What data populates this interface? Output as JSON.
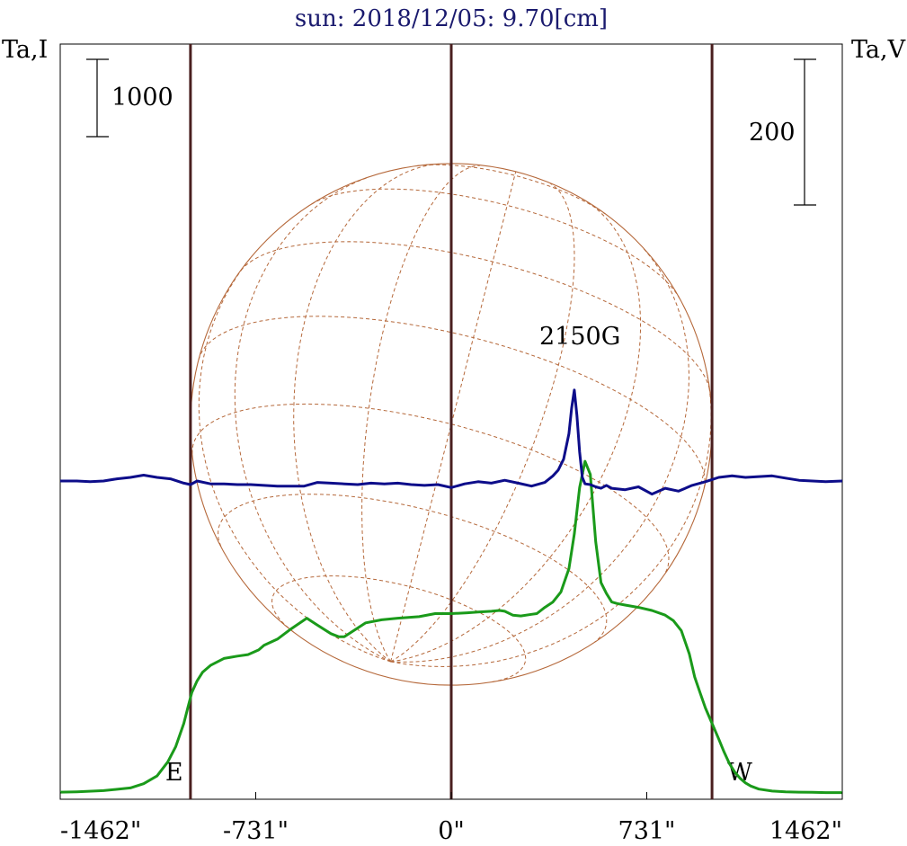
{
  "chart_data": {
    "type": "line",
    "title": "sun: 2018/12/05: 9.70[cm]",
    "left_axis_label": "Ta,I",
    "right_axis_label": "Ta,V",
    "scale_bar_left_label": "1000",
    "scale_bar_right_label": "200",
    "x_ticks": [
      {
        "value": -1462,
        "label": "-1462\""
      },
      {
        "value": -731,
        "label": "-731\""
      },
      {
        "value": 0,
        "label": "0\""
      },
      {
        "value": 731,
        "label": "731\""
      },
      {
        "value": 1462,
        "label": "1462\""
      }
    ],
    "xlim": [
      -1462,
      1462
    ],
    "limb_markers": [
      {
        "value": -975,
        "label": "E"
      },
      {
        "value": 0,
        "label": ""
      },
      {
        "value": 975,
        "label": "W"
      }
    ],
    "annotation": "2150G",
    "solar_radius_arcsec": 975,
    "colors": {
      "intensity": "#1a9a1a",
      "polarization": "#0d0d8a",
      "grid": "#b5683a",
      "marker": "#4a1f1f",
      "title": "#1a1a6e"
    },
    "series": [
      {
        "unit_axis": "left (Ta,I)",
        "x": [
          -1462,
          -1400,
          -1300,
          -1200,
          -1150,
          -1100,
          -1060,
          -1030,
          -1000,
          -985,
          -970,
          -950,
          -930,
          -900,
          -850,
          -800,
          -760,
          -720,
          -700,
          -650,
          -600,
          -540,
          -500,
          -450,
          -420,
          -400,
          -360,
          -320,
          -260,
          -200,
          -160,
          -120,
          -60,
          0,
          60,
          100,
          150,
          180,
          200,
          230,
          260,
          300,
          320,
          350,
          380,
          410,
          440,
          460,
          480,
          500,
          520,
          540,
          560,
          580,
          600,
          620,
          650,
          700,
          750,
          800,
          830,
          860,
          890,
          910,
          930,
          950,
          975,
          1000,
          1020,
          1040,
          1060,
          1080,
          1100,
          1120,
          1150,
          1200,
          1250,
          1300,
          1350,
          1400,
          1462
        ],
        "values": [
          10,
          15,
          30,
          65,
          120,
          220,
          400,
          600,
          900,
          1100,
          1300,
          1450,
          1560,
          1650,
          1740,
          1770,
          1790,
          1850,
          1910,
          1990,
          2120,
          2260,
          2170,
          2060,
          2020,
          2020,
          2110,
          2200,
          2240,
          2260,
          2270,
          2280,
          2320,
          2320,
          2330,
          2340,
          2350,
          2360,
          2350,
          2300,
          2290,
          2310,
          2320,
          2400,
          2470,
          2600,
          2900,
          3350,
          3950,
          4290,
          4120,
          3250,
          2720,
          2580,
          2470,
          2450,
          2430,
          2400,
          2360,
          2300,
          2230,
          2100,
          1800,
          1500,
          1300,
          1100,
          900,
          700,
          530,
          380,
          270,
          190,
          130,
          90,
          50,
          25,
          15,
          10,
          8,
          5,
          5
        ]
      },
      {
        "unit_axis": "right (Ta,V)",
        "x": [
          -1462,
          -1400,
          -1350,
          -1300,
          -1250,
          -1200,
          -1150,
          -1100,
          -1050,
          -1000,
          -975,
          -950,
          -900,
          -850,
          -800,
          -750,
          -700,
          -650,
          -600,
          -550,
          -500,
          -450,
          -400,
          -350,
          -300,
          -250,
          -200,
          -150,
          -100,
          -50,
          0,
          50,
          100,
          150,
          200,
          250,
          300,
          350,
          380,
          400,
          420,
          440,
          450,
          460,
          470,
          480,
          490,
          500,
          520,
          540,
          560,
          580,
          600,
          650,
          700,
          750,
          800,
          850,
          900,
          950,
          975,
          1000,
          1050,
          1100,
          1150,
          1200,
          1250,
          1300,
          1350,
          1400,
          1462
        ],
        "values": [
          0,
          0,
          -1,
          0,
          3,
          5,
          8,
          5,
          3,
          -3,
          -5,
          0,
          -4,
          -4,
          -5,
          -5,
          -6,
          -7,
          -7,
          -7,
          -2,
          -3,
          -4,
          -5,
          -3,
          -4,
          -3,
          -5,
          -6,
          -5,
          -9,
          -4,
          -1,
          -3,
          1,
          -3,
          -7,
          -2,
          7,
          15,
          30,
          65,
          100,
          125,
          90,
          40,
          5,
          -4,
          -5,
          -8,
          -10,
          -6,
          -10,
          -12,
          -8,
          -18,
          -10,
          -14,
          -6,
          -1,
          2,
          5,
          7,
          5,
          6,
          7,
          4,
          1,
          0,
          -1,
          0
        ]
      }
    ]
  }
}
